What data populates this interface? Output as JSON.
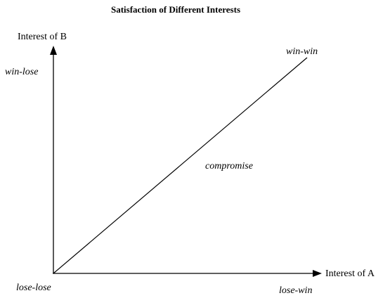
{
  "title": "Satisfaction of Different Interests",
  "axes": {
    "y_label": "Interest of B",
    "x_label": "Interest of A"
  },
  "regions": {
    "top_left": "win-lose",
    "top_right": "win-win",
    "middle": "compromise",
    "origin": "lose-lose",
    "bottom_right": "lose-win"
  }
}
